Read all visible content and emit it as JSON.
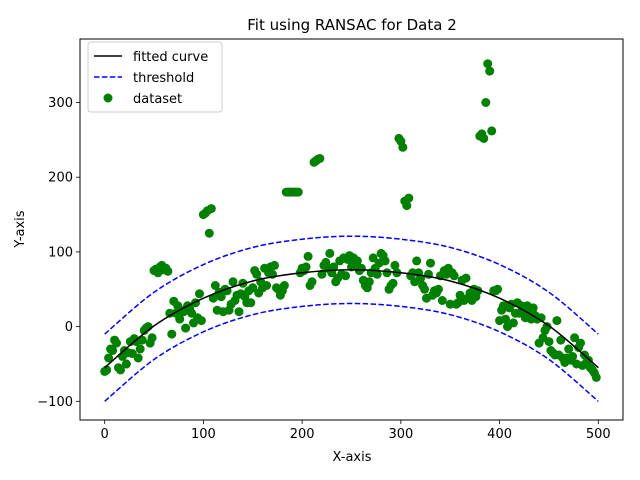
{
  "chart_data": {
    "type": "scatter",
    "title": "Fit using RANSAC for Data 2",
    "xlabel": "X-axis",
    "ylabel": "Y-axis",
    "xlim": [
      -25,
      525
    ],
    "ylim": [
      -125,
      385
    ],
    "xticks": [
      0,
      100,
      200,
      300,
      400,
      500
    ],
    "yticks": [
      -100,
      0,
      100,
      200,
      300
    ],
    "grid": false,
    "legend_position": "top-left",
    "legend": [
      "fitted curve",
      "threshold",
      "dataset"
    ],
    "colors": {
      "curve": "#000000",
      "threshold": "#0000ff",
      "points": "#008000"
    },
    "fitted_curve": {
      "label": "fitted curve",
      "x": [
        0,
        50,
        100,
        150,
        200,
        250,
        300,
        350,
        400,
        450,
        500
      ],
      "y": [
        -55,
        1,
        38,
        61,
        72,
        76,
        72,
        61,
        38,
        1,
        -55
      ]
    },
    "threshold_upper": {
      "label": "threshold",
      "x": [
        0,
        50,
        100,
        150,
        200,
        250,
        300,
        350,
        400,
        450,
        500
      ],
      "y": [
        -10,
        46,
        83,
        106,
        117,
        121,
        117,
        106,
        83,
        46,
        -10
      ]
    },
    "threshold_lower": {
      "x": [
        0,
        50,
        100,
        150,
        200,
        250,
        300,
        350,
        400,
        450,
        500
      ],
      "y": [
        -100,
        -44,
        -7,
        16,
        27,
        31,
        27,
        16,
        -7,
        -44,
        -100
      ]
    },
    "dataset": {
      "label": "dataset",
      "points": [
        [
          0,
          -60
        ],
        [
          2,
          -58
        ],
        [
          4,
          -42
        ],
        [
          6,
          -30
        ],
        [
          8,
          -32
        ],
        [
          10,
          -18
        ],
        [
          12,
          -22
        ],
        [
          14,
          -55
        ],
        [
          16,
          -58
        ],
        [
          18,
          -40
        ],
        [
          20,
          -32
        ],
        [
          22,
          -50
        ],
        [
          24,
          -35
        ],
        [
          26,
          -20
        ],
        [
          28,
          -36
        ],
        [
          30,
          -16
        ],
        [
          32,
          -20
        ],
        [
          34,
          -42
        ],
        [
          36,
          -30
        ],
        [
          38,
          -18
        ],
        [
          40,
          -5
        ],
        [
          42,
          -2
        ],
        [
          44,
          0
        ],
        [
          46,
          -22
        ],
        [
          48,
          -15
        ],
        [
          50,
          75
        ],
        [
          52,
          77
        ],
        [
          54,
          72
        ],
        [
          56,
          80
        ],
        [
          58,
          82
        ],
        [
          60,
          76
        ],
        [
          62,
          78
        ],
        [
          64,
          74
        ],
        [
          66,
          18
        ],
        [
          68,
          -10
        ],
        [
          70,
          34
        ],
        [
          72,
          18
        ],
        [
          74,
          28
        ],
        [
          76,
          10
        ],
        [
          78,
          22
        ],
        [
          80,
          20
        ],
        [
          82,
          -2
        ],
        [
          84,
          28
        ],
        [
          86,
          24
        ],
        [
          88,
          18
        ],
        [
          90,
          5
        ],
        [
          92,
          32
        ],
        [
          94,
          12
        ],
        [
          96,
          44
        ],
        [
          98,
          8
        ],
        [
          100,
          150
        ],
        [
          102,
          152
        ],
        [
          104,
          155
        ],
        [
          106,
          125
        ],
        [
          108,
          158
        ],
        [
          110,
          38
        ],
        [
          112,
          55
        ],
        [
          114,
          22
        ],
        [
          116,
          46
        ],
        [
          118,
          40
        ],
        [
          120,
          20
        ],
        [
          122,
          50
        ],
        [
          124,
          48
        ],
        [
          126,
          22
        ],
        [
          128,
          30
        ],
        [
          130,
          60
        ],
        [
          132,
          35
        ],
        [
          134,
          42
        ],
        [
          136,
          20
        ],
        [
          138,
          44
        ],
        [
          140,
          58
        ],
        [
          142,
          40
        ],
        [
          144,
          32
        ],
        [
          146,
          48
        ],
        [
          148,
          32
        ],
        [
          150,
          52
        ],
        [
          152,
          75
        ],
        [
          154,
          70
        ],
        [
          156,
          45
        ],
        [
          158,
          60
        ],
        [
          160,
          52
        ],
        [
          162,
          78
        ],
        [
          164,
          55
        ],
        [
          166,
          72
        ],
        [
          168,
          80
        ],
        [
          170,
          70
        ],
        [
          172,
          82
        ],
        [
          174,
          52
        ],
        [
          176,
          50
        ],
        [
          178,
          42
        ],
        [
          180,
          48
        ],
        [
          182,
          55
        ],
        [
          184,
          180
        ],
        [
          186,
          180
        ],
        [
          188,
          180
        ],
        [
          190,
          180
        ],
        [
          192,
          180
        ],
        [
          194,
          180
        ],
        [
          196,
          180
        ],
        [
          198,
          72
        ],
        [
          200,
          78
        ],
        [
          202,
          75
        ],
        [
          204,
          80
        ],
        [
          206,
          94
        ],
        [
          208,
          55
        ],
        [
          210,
          60
        ],
        [
          212,
          220
        ],
        [
          214,
          222
        ],
        [
          216,
          224
        ],
        [
          218,
          225
        ],
        [
          220,
          70
        ],
        [
          222,
          82
        ],
        [
          224,
          86
        ],
        [
          226,
          78
        ],
        [
          228,
          98
        ],
        [
          230,
          72
        ],
        [
          232,
          80
        ],
        [
          234,
          60
        ],
        [
          236,
          65
        ],
        [
          238,
          88
        ],
        [
          240,
          70
        ],
        [
          242,
          92
        ],
        [
          244,
          68
        ],
        [
          246,
          90
        ],
        [
          248,
          95
        ],
        [
          250,
          80
        ],
        [
          252,
          92
        ],
        [
          254,
          85
        ],
        [
          256,
          88
        ],
        [
          258,
          75
        ],
        [
          260,
          78
        ],
        [
          262,
          62
        ],
        [
          264,
          55
        ],
        [
          266,
          52
        ],
        [
          268,
          60
        ],
        [
          270,
          72
        ],
        [
          272,
          92
        ],
        [
          274,
          78
        ],
        [
          276,
          70
        ],
        [
          278,
          85
        ],
        [
          280,
          98
        ],
        [
          282,
          95
        ],
        [
          284,
          88
        ],
        [
          286,
          72
        ],
        [
          288,
          50
        ],
        [
          290,
          55
        ],
        [
          292,
          58
        ],
        [
          294,
          82
        ],
        [
          296,
          72
        ],
        [
          298,
          252
        ],
        [
          300,
          248
        ],
        [
          302,
          240
        ],
        [
          304,
          168
        ],
        [
          306,
          162
        ],
        [
          308,
          172
        ],
        [
          310,
          68
        ],
        [
          312,
          72
        ],
        [
          314,
          60
        ],
        [
          316,
          88
        ],
        [
          318,
          72
        ],
        [
          320,
          65
        ],
        [
          322,
          55
        ],
        [
          324,
          50
        ],
        [
          326,
          38
        ],
        [
          328,
          70
        ],
        [
          330,
          85
        ],
        [
          332,
          42
        ],
        [
          334,
          48
        ],
        [
          336,
          45
        ],
        [
          338,
          50
        ],
        [
          340,
          68
        ],
        [
          342,
          35
        ],
        [
          344,
          75
        ],
        [
          346,
          70
        ],
        [
          348,
          78
        ],
        [
          350,
          30
        ],
        [
          352,
          72
        ],
        [
          354,
          68
        ],
        [
          356,
          30
        ],
        [
          358,
          32
        ],
        [
          360,
          42
        ],
        [
          362,
          62
        ],
        [
          364,
          35
        ],
        [
          366,
          65
        ],
        [
          368,
          38
        ],
        [
          370,
          45
        ],
        [
          372,
          35
        ],
        [
          374,
          50
        ],
        [
          376,
          40
        ],
        [
          378,
          48
        ],
        [
          380,
          255
        ],
        [
          382,
          258
        ],
        [
          384,
          252
        ],
        [
          386,
          300
        ],
        [
          388,
          352
        ],
        [
          390,
          342
        ],
        [
          392,
          262
        ],
        [
          394,
          48
        ],
        [
          396,
          48
        ],
        [
          398,
          50
        ],
        [
          400,
          8
        ],
        [
          402,
          22
        ],
        [
          404,
          28
        ],
        [
          406,
          10
        ],
        [
          408,
          0
        ],
        [
          410,
          25
        ],
        [
          412,
          30
        ],
        [
          414,
          5
        ],
        [
          416,
          18
        ],
        [
          418,
          32
        ],
        [
          420,
          18
        ],
        [
          422,
          28
        ],
        [
          424,
          22
        ],
        [
          426,
          12
        ],
        [
          428,
          28
        ],
        [
          430,
          20
        ],
        [
          432,
          10
        ],
        [
          434,
          25
        ],
        [
          436,
          15
        ],
        [
          438,
          10
        ],
        [
          440,
          -22
        ],
        [
          442,
          12
        ],
        [
          444,
          -15
        ],
        [
          446,
          -5
        ],
        [
          448,
          0
        ],
        [
          450,
          -20
        ],
        [
          452,
          -32
        ],
        [
          454,
          -35
        ],
        [
          456,
          -38
        ],
        [
          458,
          8
        ],
        [
          460,
          -38
        ],
        [
          462,
          -18
        ],
        [
          464,
          -42
        ],
        [
          466,
          -48
        ],
        [
          468,
          -42
        ],
        [
          470,
          -30
        ],
        [
          472,
          -45
        ],
        [
          474,
          -40
        ],
        [
          476,
          -15
        ],
        [
          478,
          -50
        ],
        [
          480,
          -28
        ],
        [
          482,
          -22
        ],
        [
          484,
          -52
        ],
        [
          486,
          -38
        ],
        [
          488,
          -48
        ],
        [
          490,
          -45
        ],
        [
          492,
          -55
        ],
        [
          494,
          -58
        ],
        [
          496,
          -62
        ],
        [
          498,
          -68
        ]
      ]
    }
  }
}
